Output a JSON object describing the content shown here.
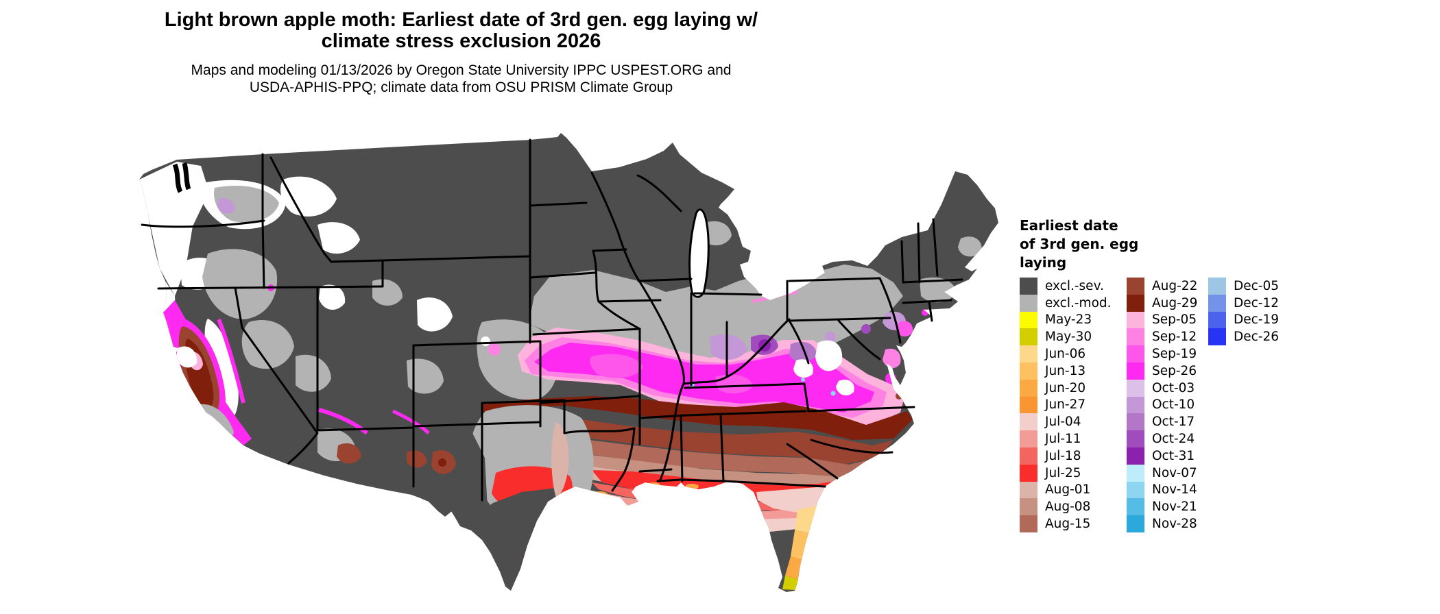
{
  "header": {
    "title_line1": "Light brown apple moth: Earliest date of 3rd gen. egg laying w/",
    "title_line2": "climate stress exclusion 2026",
    "subtitle_line1": "Maps and modeling 01/13/2026 by Oregon State University IPPC USPEST.ORG and",
    "subtitle_line2": "USDA-APHIS-PPQ; climate data from OSU PRISM Climate Group"
  },
  "legend": {
    "title_lines": [
      "Earliest date",
      "of 3rd gen. egg",
      "laying"
    ],
    "columns": [
      {
        "items": [
          {
            "label": "excl.-sev.",
            "color": "#4d4d4d"
          },
          {
            "label": "excl.-mod.",
            "color": "#b3b3b3"
          },
          {
            "label": "May-23",
            "color": "#fcfc00"
          },
          {
            "label": "May-30",
            "color": "#d3ce00"
          },
          {
            "label": "Jun-06",
            "color": "#fdd78a"
          },
          {
            "label": "Jun-13",
            "color": "#fdc161"
          },
          {
            "label": "Jun-20",
            "color": "#fbaa43"
          },
          {
            "label": "Jun-27",
            "color": "#fa9632"
          },
          {
            "label": "Jul-04",
            "color": "#f2cfcb"
          },
          {
            "label": "Jul-11",
            "color": "#f29b97"
          },
          {
            "label": "Jul-18",
            "color": "#f4655f"
          },
          {
            "label": "Jul-25",
            "color": "#fa2d2d"
          },
          {
            "label": "Aug-01",
            "color": "#dcb3a8"
          },
          {
            "label": "Aug-08",
            "color": "#c69180"
          },
          {
            "label": "Aug-15",
            "color": "#b16a5a"
          }
        ]
      },
      {
        "items": [
          {
            "label": "Aug-22",
            "color": "#9a4331"
          },
          {
            "label": "Aug-29",
            "color": "#7f1f0c"
          },
          {
            "label": "Sep-05",
            "color": "#feb3dc"
          },
          {
            "label": "Sep-12",
            "color": "#fe81e3"
          },
          {
            "label": "Sep-19",
            "color": "#fe55ea"
          },
          {
            "label": "Sep-26",
            "color": "#fe2af2"
          },
          {
            "label": "Oct-03",
            "color": "#dcc0e8"
          },
          {
            "label": "Oct-10",
            "color": "#c497d6"
          },
          {
            "label": "Oct-17",
            "color": "#b377c8"
          },
          {
            "label": "Oct-24",
            "color": "#a04cbc"
          },
          {
            "label": "Oct-31",
            "color": "#8c21ad"
          },
          {
            "label": "Nov-07",
            "color": "#bfecfb"
          },
          {
            "label": "Nov-14",
            "color": "#8dd5f0"
          },
          {
            "label": "Nov-21",
            "color": "#55bde5"
          },
          {
            "label": "Nov-28",
            "color": "#2ba8dc"
          }
        ]
      },
      {
        "items": [
          {
            "label": "Dec-05",
            "color": "#9dc5e4"
          },
          {
            "label": "Dec-12",
            "color": "#7492e8"
          },
          {
            "label": "Dec-19",
            "color": "#4c62ec"
          },
          {
            "label": "Dec-26",
            "color": "#2833f4"
          }
        ]
      }
    ]
  },
  "map": {
    "region": "Contiguous United States",
    "background": "#ffffff",
    "state_border_color": "#000000",
    "base_fill": "#4d4d4d"
  }
}
